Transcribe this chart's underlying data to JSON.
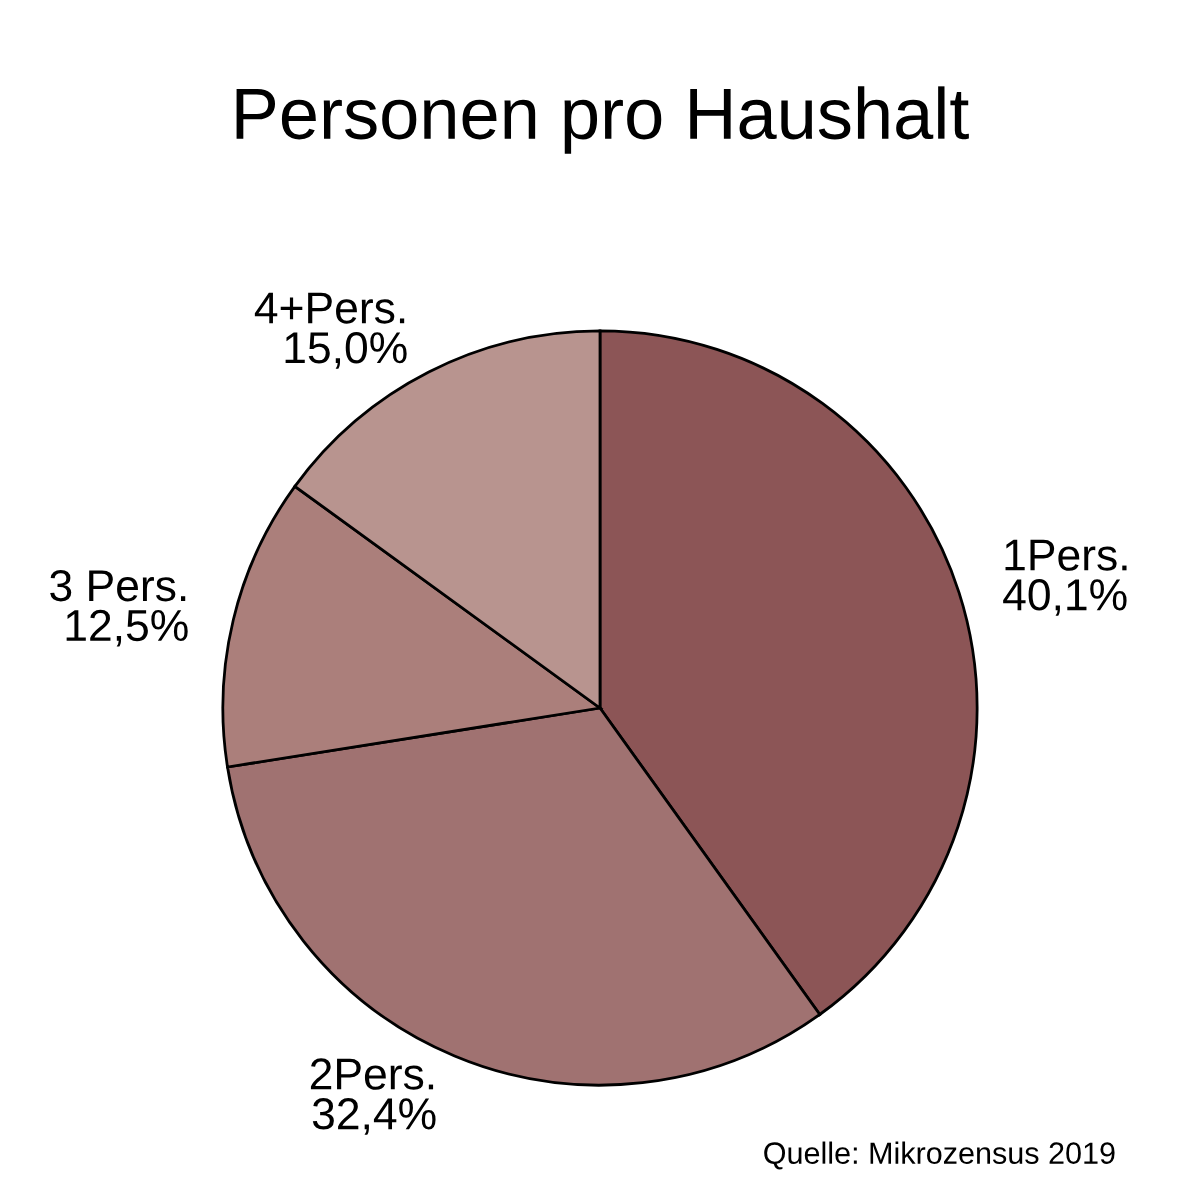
{
  "chart_data": {
    "type": "pie",
    "title": "Personen pro Haushalt",
    "categories": [
      "1Pers.",
      "2Pers.",
      "3 Pers.",
      "4+Pers."
    ],
    "values": [
      40.1,
      32.4,
      12.5,
      15.0
    ],
    "value_labels": [
      "40,1%",
      "32,4%",
      "12,5%",
      "15,0%"
    ],
    "colors": [
      "#8c5556",
      "#a07271",
      "#ab7f7b",
      "#b8948f"
    ],
    "annotations": [
      "Quelle: Mikrozensus 2019"
    ]
  }
}
